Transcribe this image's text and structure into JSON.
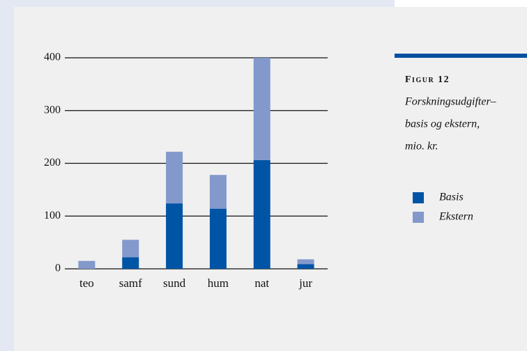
{
  "chart_data": {
    "type": "stacked_bar",
    "figure_label": "Figur 12",
    "caption_lines": [
      "Forskningsudgifter–",
      "basis og ekstern,",
      "mio. kr."
    ],
    "categories": [
      "teo",
      "samf",
      "sund",
      "hum",
      "nat",
      "jur"
    ],
    "series": [
      {
        "name": "Basis",
        "color": "#0054a6",
        "values": [
          0,
          22,
          124,
          114,
          206,
          9
        ]
      },
      {
        "name": "Ekstern",
        "color": "#8399cc",
        "values": [
          15,
          33,
          98,
          64,
          194,
          9
        ]
      }
    ],
    "ylim": [
      0,
      400
    ],
    "yticks": [
      0,
      100,
      200,
      300,
      400
    ],
    "grid": true
  }
}
